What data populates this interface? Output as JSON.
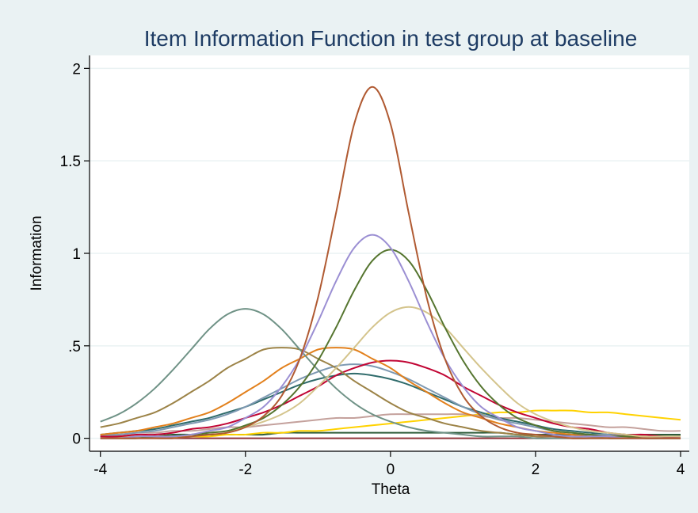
{
  "chart_data": {
    "type": "line",
    "title": "Item Information Function in test group at baseline",
    "xlabel": "Theta",
    "ylabel": "Information",
    "x": [
      -4,
      -3.75,
      -3.5,
      -3.25,
      -3,
      -2.75,
      -2.5,
      -2.25,
      -2,
      -1.75,
      -1.5,
      -1.25,
      -1,
      -0.75,
      -0.5,
      -0.25,
      0,
      0.25,
      0.5,
      0.75,
      1,
      1.25,
      1.5,
      1.75,
      2,
      2.25,
      2.5,
      2.75,
      3,
      3.25,
      3.5,
      3.75,
      4
    ],
    "xlim": [
      -4.15,
      4.12
    ],
    "ylim": [
      -0.07,
      2.07
    ],
    "xticks": [
      -4,
      -2,
      0,
      2,
      4
    ],
    "yticks": [
      0,
      {
        "value": 0.5,
        "label": ".5"
      },
      1,
      1.5,
      2
    ],
    "grid": true,
    "series": [
      {
        "color": "#2e5c3a",
        "values": [
          0.01,
          0.01,
          0.01,
          0.01,
          0.02,
          0.02,
          0.02,
          0.02,
          0.02,
          0.02,
          0.03,
          0.03,
          0.03,
          0.03,
          0.03,
          0.03,
          0.03,
          0.03,
          0.03,
          0.03,
          0.03,
          0.03,
          0.03,
          0.02,
          0.02,
          0.02,
          0.02,
          0.02,
          0.02,
          0.02,
          0.02,
          0.02,
          0.02
        ]
      },
      {
        "color": "#90353b",
        "values": [
          0,
          0,
          0,
          0,
          0,
          0,
          0,
          0,
          0,
          0,
          0,
          0,
          0,
          0,
          0,
          0,
          0,
          0,
          0,
          0,
          0,
          0,
          0,
          0,
          0,
          0,
          0,
          0,
          0,
          0,
          0,
          0,
          0
        ]
      },
      {
        "color": "#ffd200",
        "values": [
          0.0,
          0.01,
          0.01,
          0.01,
          0.01,
          0.01,
          0.01,
          0.02,
          0.02,
          0.03,
          0.03,
          0.04,
          0.04,
          0.05,
          0.06,
          0.07,
          0.08,
          0.09,
          0.1,
          0.11,
          0.12,
          0.13,
          0.14,
          0.14,
          0.15,
          0.15,
          0.15,
          0.14,
          0.14,
          0.13,
          0.12,
          0.11,
          0.1
        ]
      },
      {
        "color": "#c4a19c",
        "values": [
          0.02,
          0.02,
          0.03,
          0.03,
          0.04,
          0.04,
          0.05,
          0.06,
          0.06,
          0.07,
          0.08,
          0.09,
          0.1,
          0.11,
          0.11,
          0.12,
          0.13,
          0.13,
          0.13,
          0.13,
          0.13,
          0.12,
          0.11,
          0.11,
          0.1,
          0.09,
          0.08,
          0.07,
          0.06,
          0.06,
          0.05,
          0.04,
          0.04
        ]
      },
      {
        "color": "#2f6b6b",
        "values": [
          0.02,
          0.03,
          0.04,
          0.05,
          0.07,
          0.09,
          0.11,
          0.14,
          0.17,
          0.21,
          0.25,
          0.29,
          0.32,
          0.34,
          0.35,
          0.34,
          0.32,
          0.29,
          0.25,
          0.21,
          0.17,
          0.14,
          0.11,
          0.09,
          0.07,
          0.05,
          0.04,
          0.03,
          0.02,
          0.02,
          0.01,
          0.01,
          0.01
        ]
      },
      {
        "color": "#7e99b2",
        "values": [
          0.02,
          0.02,
          0.03,
          0.04,
          0.06,
          0.08,
          0.1,
          0.13,
          0.17,
          0.22,
          0.27,
          0.32,
          0.36,
          0.39,
          0.4,
          0.39,
          0.36,
          0.32,
          0.27,
          0.22,
          0.17,
          0.13,
          0.1,
          0.08,
          0.06,
          0.04,
          0.03,
          0.02,
          0.02,
          0.01,
          0.01,
          0.01,
          0.0
        ]
      },
      {
        "color": "#c10534",
        "values": [
          0.01,
          0.01,
          0.02,
          0.02,
          0.03,
          0.05,
          0.06,
          0.08,
          0.11,
          0.14,
          0.18,
          0.23,
          0.28,
          0.34,
          0.38,
          0.41,
          0.42,
          0.41,
          0.38,
          0.34,
          0.28,
          0.23,
          0.18,
          0.14,
          0.11,
          0.08,
          0.06,
          0.05,
          0.03,
          0.02,
          0.02,
          0.01,
          0.01
        ]
      },
      {
        "color": "#e2801c",
        "values": [
          0.02,
          0.03,
          0.04,
          0.06,
          0.08,
          0.11,
          0.14,
          0.19,
          0.25,
          0.31,
          0.38,
          0.43,
          0.48,
          0.49,
          0.48,
          0.43,
          0.38,
          0.31,
          0.25,
          0.19,
          0.14,
          0.11,
          0.08,
          0.06,
          0.04,
          0.03,
          0.02,
          0.01,
          0.01,
          0.01,
          0.01,
          0.0,
          0.0
        ]
      },
      {
        "color": "#9c8347",
        "values": [
          0.06,
          0.08,
          0.11,
          0.14,
          0.19,
          0.25,
          0.31,
          0.38,
          0.43,
          0.48,
          0.49,
          0.48,
          0.43,
          0.38,
          0.31,
          0.25,
          0.19,
          0.14,
          0.11,
          0.08,
          0.06,
          0.04,
          0.03,
          0.02,
          0.01,
          0.01,
          0.01,
          0.01,
          0.0,
          0.0,
          0.0,
          0.0,
          0.0
        ]
      },
      {
        "color": "#6f9286",
        "values": [
          0.09,
          0.13,
          0.19,
          0.27,
          0.37,
          0.48,
          0.59,
          0.67,
          0.7,
          0.67,
          0.59,
          0.48,
          0.37,
          0.27,
          0.19,
          0.13,
          0.09,
          0.06,
          0.04,
          0.03,
          0.02,
          0.01,
          0.01,
          0.01,
          0.0,
          0.0,
          0.0,
          0.0,
          0.0,
          0.0,
          0.0,
          0.0,
          0.0
        ]
      },
      {
        "color": "#d4c48c",
        "values": [
          0.0,
          0.0,
          0.01,
          0.01,
          0.01,
          0.02,
          0.03,
          0.04,
          0.06,
          0.09,
          0.13,
          0.19,
          0.28,
          0.38,
          0.49,
          0.6,
          0.68,
          0.71,
          0.68,
          0.6,
          0.49,
          0.38,
          0.28,
          0.19,
          0.13,
          0.09,
          0.06,
          0.04,
          0.03,
          0.02,
          0.01,
          0.01,
          0.01
        ]
      },
      {
        "color": "#55752f",
        "values": [
          0.0,
          0.0,
          0.0,
          0.01,
          0.01,
          0.02,
          0.03,
          0.04,
          0.07,
          0.11,
          0.18,
          0.28,
          0.42,
          0.6,
          0.8,
          0.96,
          1.02,
          0.96,
          0.8,
          0.6,
          0.42,
          0.28,
          0.18,
          0.11,
          0.07,
          0.04,
          0.03,
          0.02,
          0.01,
          0.01,
          0.0,
          0.0,
          0.0
        ]
      },
      {
        "color": "#9b8fd3",
        "values": [
          0.0,
          0.0,
          0.01,
          0.01,
          0.01,
          0.02,
          0.04,
          0.06,
          0.11,
          0.17,
          0.28,
          0.43,
          0.63,
          0.85,
          1.03,
          1.1,
          1.03,
          0.85,
          0.63,
          0.43,
          0.28,
          0.17,
          0.11,
          0.06,
          0.04,
          0.02,
          0.01,
          0.01,
          0.01,
          0.0,
          0.0,
          0.0,
          0.0
        ]
      },
      {
        "color": "#b05a32",
        "values": [
          0.0,
          0.0,
          0.0,
          0.0,
          0.0,
          0.01,
          0.02,
          0.03,
          0.06,
          0.12,
          0.23,
          0.43,
          0.76,
          1.22,
          1.7,
          1.9,
          1.7,
          1.22,
          0.76,
          0.43,
          0.23,
          0.12,
          0.06,
          0.03,
          0.02,
          0.01,
          0.0,
          0.0,
          0.0,
          0.0,
          0.0,
          0.0,
          0.0
        ]
      }
    ]
  }
}
